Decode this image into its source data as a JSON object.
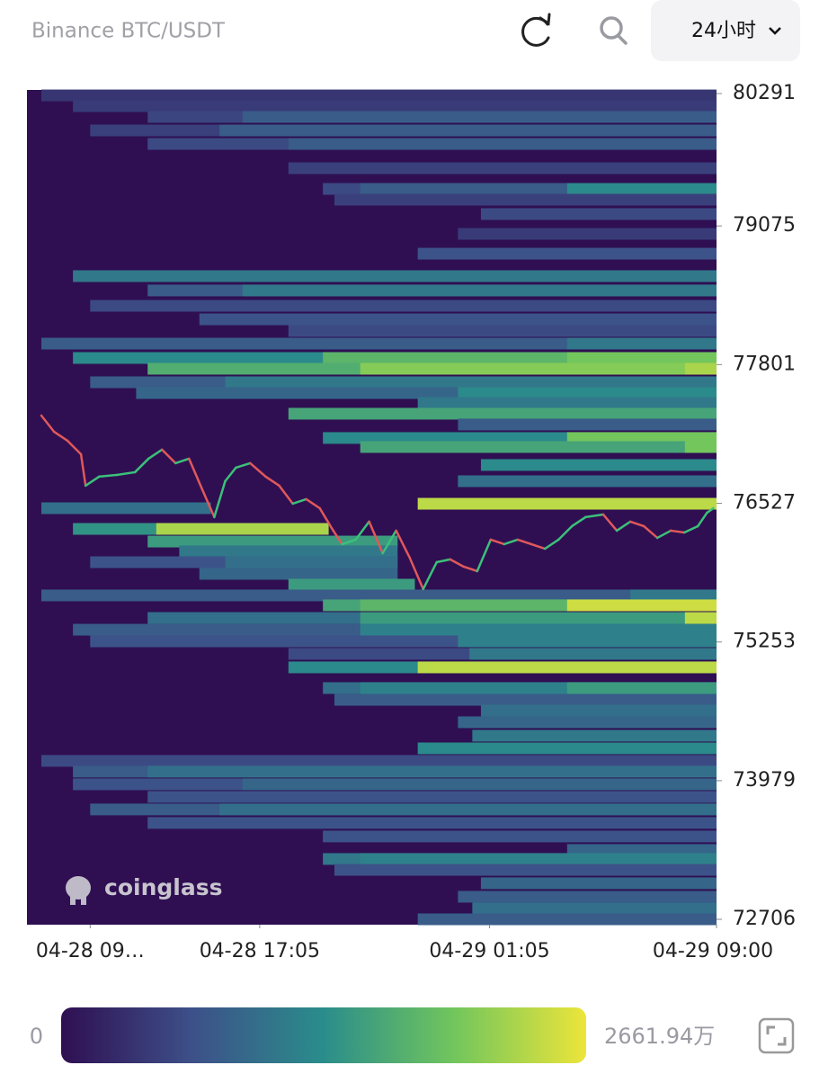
{
  "header": {
    "title": "Binance BTC/USDT",
    "timeframe": "24小时"
  },
  "chart_data": {
    "type": "heatmap",
    "watermark": "coinglass",
    "xlim": [
      0,
      24
    ],
    "xticks": [
      {
        "value": 2.2,
        "label": "04-28 09…"
      },
      {
        "value": 8.1,
        "label": "04-28 17:05"
      },
      {
        "value": 16.1,
        "label": "04-29 01:05"
      },
      {
        "value": 24,
        "label": "04-29 09:00"
      }
    ],
    "ylim": [
      72706,
      80291
    ],
    "yticks": [
      80291,
      79075,
      77801,
      76527,
      75253,
      73979,
      72706
    ],
    "zlim": [
      0,
      2661.94
    ],
    "zticks": [
      0,
      {
        "value": 2661.94,
        "label": "2661.94万"
      }
    ],
    "colorscale": [
      "#2f0f52",
      "#3d5089",
      "#2a8d8b",
      "#72c65c",
      "#ece53a"
    ],
    "bands": [
      {
        "price": 80274,
        "start": 0.5,
        "value": 400
      },
      {
        "price": 80175,
        "start": 1.6,
        "value": 450
      },
      {
        "price": 80076,
        "start": 4.2,
        "value": 550
      },
      {
        "price": 80076,
        "start": 7.5,
        "value": 800
      },
      {
        "price": 79952,
        "start": 2.2,
        "value": 500
      },
      {
        "price": 79952,
        "start": 6.7,
        "value": 800
      },
      {
        "price": 79828,
        "start": 4.2,
        "value": 600
      },
      {
        "price": 79828,
        "start": 9.1,
        "value": 800
      },
      {
        "price": 79605,
        "start": 9.1,
        "value": 500
      },
      {
        "price": 79415,
        "start": 10.3,
        "value": 600
      },
      {
        "price": 79415,
        "start": 11.6,
        "value": 800
      },
      {
        "price": 79415,
        "start": 18.8,
        "value": 1300
      },
      {
        "price": 79316,
        "start": 10.7,
        "value": 500
      },
      {
        "price": 79184,
        "start": 15.8,
        "value": 600
      },
      {
        "price": 79002,
        "start": 15.0,
        "value": 450
      },
      {
        "price": 78820,
        "start": 13.6,
        "value": 700
      },
      {
        "price": 78614,
        "start": 1.6,
        "value": 1100
      },
      {
        "price": 78482,
        "start": 4.2,
        "value": 800
      },
      {
        "price": 78482,
        "start": 7.5,
        "value": 1100
      },
      {
        "price": 78341,
        "start": 2.2,
        "value": 600
      },
      {
        "price": 78217,
        "start": 6.0,
        "value": 700
      },
      {
        "price": 78110,
        "start": 9.1,
        "value": 600
      },
      {
        "price": 77994,
        "start": 0.5,
        "value": 800
      },
      {
        "price": 77994,
        "start": 18.8,
        "value": 1100
      },
      {
        "price": 77862,
        "start": 1.6,
        "value": 1300
      },
      {
        "price": 77862,
        "start": 10.3,
        "value": 1800
      },
      {
        "price": 77862,
        "start": 18.8,
        "value": 2000
      },
      {
        "price": 77763,
        "start": 4.2,
        "value": 1700
      },
      {
        "price": 77763,
        "start": 11.6,
        "value": 2100
      },
      {
        "price": 77763,
        "start": 22.9,
        "value": 2300
      },
      {
        "price": 77639,
        "start": 2.2,
        "value": 800
      },
      {
        "price": 77639,
        "start": 6.9,
        "value": 1100
      },
      {
        "price": 77540,
        "start": 3.8,
        "value": 900
      },
      {
        "price": 77540,
        "start": 15.0,
        "value": 1300
      },
      {
        "price": 77449,
        "start": 13.6,
        "value": 1100
      },
      {
        "price": 77350,
        "start": 9.1,
        "value": 1600
      },
      {
        "price": 77251,
        "start": 15.0,
        "value": 800
      },
      {
        "price": 77127,
        "start": 10.3,
        "value": 1300
      },
      {
        "price": 77127,
        "start": 18.8,
        "value": 2000
      },
      {
        "price": 77044,
        "start": 11.6,
        "value": 1600
      },
      {
        "price": 77044,
        "start": 22.9,
        "value": 2000
      },
      {
        "price": 76879,
        "start": 15.8,
        "value": 1300
      },
      {
        "price": 76730,
        "start": 15.0,
        "value": 1000
      },
      {
        "price": 76523,
        "start": 13.6,
        "value": 2400
      },
      {
        "price": 76482,
        "start": 0.5,
        "end": 6.4,
        "value": 1000
      },
      {
        "price": 76292,
        "start": 1.6,
        "end": 10.5,
        "value": 1400
      },
      {
        "price": 76292,
        "start": 4.5,
        "end": 10.5,
        "value": 2300
      },
      {
        "price": 76176,
        "start": 4.2,
        "end": 12.9,
        "value": 1500
      },
      {
        "price": 76086,
        "start": 5.3,
        "end": 12.9,
        "value": 1100
      },
      {
        "price": 75986,
        "start": 2.2,
        "end": 12.9,
        "value": 700
      },
      {
        "price": 75986,
        "start": 6.9,
        "end": 12.9,
        "value": 1000
      },
      {
        "price": 75879,
        "start": 6.0,
        "end": 12.9,
        "value": 900
      },
      {
        "price": 75780,
        "start": 9.1,
        "end": 13.5,
        "value": 1500
      },
      {
        "price": 75681,
        "start": 0.5,
        "value": 800
      },
      {
        "price": 75681,
        "start": 21.0,
        "value": 1100
      },
      {
        "price": 75590,
        "start": 10.3,
        "value": 1600
      },
      {
        "price": 75590,
        "start": 11.6,
        "value": 1800
      },
      {
        "price": 75590,
        "start": 18.8,
        "value": 2500
      },
      {
        "price": 75474,
        "start": 4.2,
        "value": 1000
      },
      {
        "price": 75474,
        "start": 11.6,
        "value": 1500
      },
      {
        "price": 75474,
        "start": 22.9,
        "value": 2400
      },
      {
        "price": 75366,
        "start": 1.6,
        "value": 800
      },
      {
        "price": 75366,
        "start": 11.6,
        "value": 1200
      },
      {
        "price": 75259,
        "start": 2.2,
        "value": 700
      },
      {
        "price": 75259,
        "start": 15.0,
        "value": 1200
      },
      {
        "price": 75144,
        "start": 9.1,
        "value": 600
      },
      {
        "price": 75144,
        "start": 15.4,
        "value": 1100
      },
      {
        "price": 75020,
        "start": 9.1,
        "value": 1300
      },
      {
        "price": 75020,
        "start": 13.6,
        "value": 2400
      },
      {
        "price": 74830,
        "start": 10.3,
        "value": 1000
      },
      {
        "price": 74830,
        "start": 11.6,
        "value": 1200
      },
      {
        "price": 74830,
        "start": 18.8,
        "value": 1500
      },
      {
        "price": 74722,
        "start": 10.7,
        "value": 800
      },
      {
        "price": 74623,
        "start": 15.8,
        "value": 1000
      },
      {
        "price": 74516,
        "start": 15.0,
        "value": 900
      },
      {
        "price": 74392,
        "start": 15.5,
        "value": 1100
      },
      {
        "price": 74276,
        "start": 13.6,
        "value": 1300
      },
      {
        "price": 74161,
        "start": 0.5,
        "value": 600
      },
      {
        "price": 74062,
        "start": 1.6,
        "value": 800
      },
      {
        "price": 74062,
        "start": 4.2,
        "value": 1000
      },
      {
        "price": 73946,
        "start": 1.6,
        "value": 700
      },
      {
        "price": 73946,
        "start": 7.5,
        "value": 900
      },
      {
        "price": 73830,
        "start": 4.2,
        "value": 700
      },
      {
        "price": 73715,
        "start": 2.2,
        "value": 800
      },
      {
        "price": 73715,
        "start": 6.7,
        "value": 1000
      },
      {
        "price": 73591,
        "start": 4.2,
        "value": 700
      },
      {
        "price": 73467,
        "start": 10.3,
        "value": 700
      },
      {
        "price": 73343,
        "start": 18.8,
        "value": 900
      },
      {
        "price": 73260,
        "start": 10.3,
        "value": 1100
      },
      {
        "price": 73260,
        "start": 11.6,
        "value": 1200
      },
      {
        "price": 73160,
        "start": 10.7,
        "value": 700
      },
      {
        "price": 73037,
        "start": 15.8,
        "value": 900
      },
      {
        "price": 72913,
        "start": 15.0,
        "value": 800
      },
      {
        "price": 72806,
        "start": 15.5,
        "value": 1000
      },
      {
        "price": 72706,
        "start": 13.6,
        "value": 800
      }
    ],
    "up_color": "#3cc07a",
    "down_color": "#e0585a",
    "series": [
      {
        "name": "BTC/USDT",
        "x": [
          0.5,
          0.94,
          1.41,
          1.88,
          2.04,
          2.51,
          3.13,
          3.76,
          4.23,
          4.7,
          5.17,
          5.64,
          6.11,
          6.52,
          6.9,
          7.27,
          7.77,
          8.31,
          8.78,
          9.25,
          9.72,
          10.19,
          10.66,
          10.97,
          11.44,
          11.91,
          12.38,
          12.85,
          13.32,
          13.79,
          14.26,
          14.73,
          15.2,
          15.67,
          16.14,
          16.61,
          17.08,
          17.55,
          18.03,
          18.5,
          18.97,
          19.44,
          20.06,
          20.53,
          21.0,
          21.47,
          21.94,
          22.41,
          22.88,
          23.35,
          23.67,
          23.89
        ],
        "values": [
          77333,
          77185,
          77102,
          76978,
          76689,
          76772,
          76788,
          76813,
          76937,
          77020,
          76896,
          76937,
          76648,
          76400,
          76731,
          76854,
          76896,
          76772,
          76689,
          76524,
          76565,
          76482,
          76276,
          76152,
          76193,
          76359,
          76069,
          76276,
          76028,
          75739,
          75986,
          76012,
          75945,
          75904,
          76193,
          76152,
          76193,
          76152,
          76110,
          76193,
          76317,
          76400,
          76424,
          76276,
          76359,
          76317,
          76210,
          76276,
          76259,
          76317,
          76441,
          76482
        ]
      }
    ]
  }
}
